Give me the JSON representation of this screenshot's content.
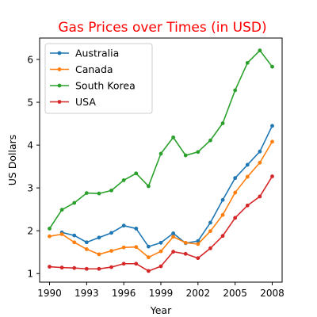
{
  "chart_data": {
    "type": "line",
    "title": "Gas Prices over Times (in USD)",
    "title_color": "#ff0000",
    "xlabel": "Year",
    "ylabel": "US Dollars",
    "xlim": [
      1989.2,
      2008.8
    ],
    "ylim": [
      0.8,
      6.5
    ],
    "xticks": [
      1990,
      1993,
      1996,
      1999,
      2002,
      2005,
      2008
    ],
    "xtick_labels": [
      "1990",
      "1993",
      "1996",
      "1999",
      "2002",
      "2005",
      "2008"
    ],
    "yticks": [
      1,
      2,
      3,
      4,
      5,
      6
    ],
    "ytick_labels": [
      "1",
      "2",
      "3",
      "4",
      "5",
      "6"
    ],
    "grid": false,
    "legend_position": "top-left",
    "series": [
      {
        "name": "Australia",
        "color": "#1f77b4",
        "x": [
          1991,
          1992,
          1993,
          1994,
          1995,
          1996,
          1997,
          1998,
          1999,
          2000,
          2001,
          2002,
          2003,
          2004,
          2005,
          2006,
          2007,
          2008
        ],
        "values": [
          1.96,
          1.89,
          1.73,
          1.84,
          1.95,
          2.12,
          2.05,
          1.63,
          1.72,
          1.94,
          1.71,
          1.76,
          2.19,
          2.72,
          3.23,
          3.54,
          3.85,
          4.45
        ]
      },
      {
        "name": "Canada",
        "color": "#ff7f0e",
        "x": [
          1990,
          1991,
          1992,
          1993,
          1994,
          1995,
          1996,
          1997,
          1998,
          1999,
          2000,
          2001,
          2002,
          2003,
          2004,
          2005,
          2006,
          2007,
          2008
        ],
        "values": [
          1.87,
          1.92,
          1.73,
          1.57,
          1.45,
          1.53,
          1.61,
          1.62,
          1.38,
          1.52,
          1.86,
          1.72,
          1.69,
          1.99,
          2.37,
          2.89,
          3.26,
          3.59,
          4.08
        ]
      },
      {
        "name": "South Korea",
        "color": "#2ca02c",
        "x": [
          1990,
          1991,
          1992,
          1993,
          1994,
          1995,
          1996,
          1997,
          1998,
          1999,
          2000,
          2001,
          2002,
          2003,
          2004,
          2005,
          2006,
          2007,
          2008
        ],
        "values": [
          2.05,
          2.49,
          2.65,
          2.88,
          2.87,
          2.94,
          3.18,
          3.34,
          3.04,
          3.8,
          4.18,
          3.76,
          3.84,
          4.11,
          4.51,
          5.28,
          5.92,
          6.21,
          5.83
        ]
      },
      {
        "name": "USA",
        "color": "#d62728",
        "x": [
          1990,
          1991,
          1992,
          1993,
          1994,
          1995,
          1996,
          1997,
          1998,
          1999,
          2000,
          2001,
          2002,
          2003,
          2004,
          2005,
          2006,
          2007,
          2008
        ],
        "values": [
          1.16,
          1.14,
          1.13,
          1.11,
          1.11,
          1.15,
          1.23,
          1.23,
          1.06,
          1.17,
          1.51,
          1.46,
          1.36,
          1.59,
          1.88,
          2.3,
          2.59,
          2.8,
          3.27
        ]
      }
    ]
  }
}
